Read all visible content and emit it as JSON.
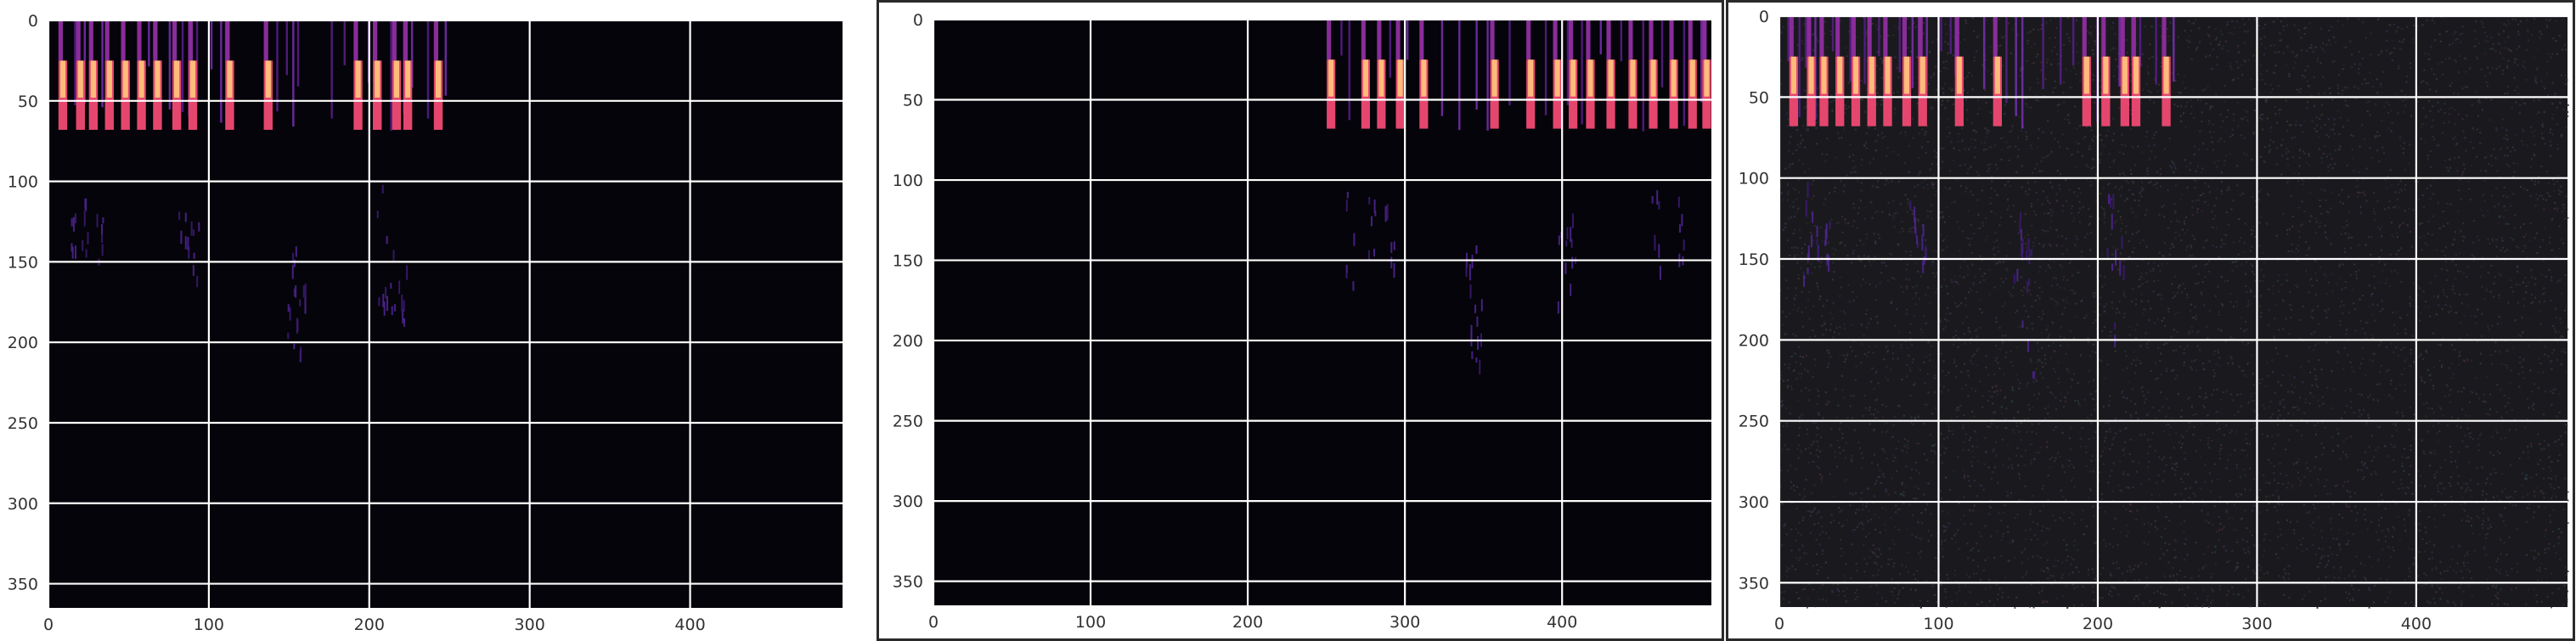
{
  "chart_data": [
    {
      "type": "heatmap",
      "title": "",
      "xlabel": "",
      "ylabel": "",
      "xlim": [
        0,
        495
      ],
      "ylim": [
        365,
        0
      ],
      "xticks": [
        0,
        100,
        200,
        300,
        400
      ],
      "yticks": [
        0,
        50,
        100,
        150,
        200,
        250,
        300,
        350
      ],
      "grid": true,
      "colormap": "magma",
      "background": "#05040a",
      "noise": false,
      "bright_columns": [
        9,
        20,
        28,
        38,
        48,
        58,
        68,
        80,
        90,
        113,
        137,
        193,
        205,
        217,
        224,
        243
      ],
      "faint_columns": [
        16,
        22,
        33,
        62,
        75,
        83,
        87,
        92,
        101,
        107,
        110,
        142,
        148,
        152,
        155,
        176,
        184,
        199,
        213,
        221,
        226,
        236,
        247
      ],
      "scatter_streaks": [
        [
          17,
          95,
          160
        ],
        [
          22,
          110,
          150
        ],
        [
          31,
          120,
          148
        ],
        [
          84,
          105,
          150
        ],
        [
          91,
          120,
          160
        ],
        [
          150,
          120,
          200
        ],
        [
          154,
          130,
          210
        ],
        [
          157,
          140,
          220
        ],
        [
          207,
          100,
          190
        ],
        [
          213,
          120,
          210
        ],
        [
          220,
          150,
          200
        ]
      ]
    },
    {
      "type": "heatmap",
      "title": "",
      "xlabel": "",
      "ylabel": "",
      "xlim": [
        0,
        495
      ],
      "ylim": [
        365,
        0
      ],
      "xticks": [
        0,
        100,
        200,
        300,
        400
      ],
      "yticks": [
        0,
        50,
        100,
        150,
        200,
        250,
        300,
        350
      ],
      "grid": true,
      "colormap": "magma",
      "background": "#05040a",
      "noise": false,
      "bright_columns": [
        253,
        275,
        285,
        297,
        312,
        357,
        380,
        397,
        407,
        418,
        431,
        445,
        458,
        471,
        483,
        492
      ],
      "faint_columns": [
        259,
        264,
        290,
        301,
        323,
        334,
        345,
        352,
        366,
        389,
        403,
        412,
        424,
        437,
        451,
        463,
        477,
        488
      ],
      "scatter_streaks": [
        [
          265,
          100,
          180
        ],
        [
          279,
          110,
          150
        ],
        [
          290,
          110,
          190
        ],
        [
          339,
          120,
          200
        ],
        [
          343,
          130,
          210
        ],
        [
          347,
          140,
          215
        ],
        [
          400,
          100,
          190
        ],
        [
          406,
          110,
          170
        ],
        [
          459,
          100,
          160
        ],
        [
          475,
          110,
          150
        ]
      ]
    },
    {
      "type": "heatmap",
      "title": "",
      "xlabel": "",
      "ylabel": "",
      "xlim": [
        0,
        495
      ],
      "ylim": [
        365,
        0
      ],
      "xticks": [
        0,
        100,
        200,
        300,
        400
      ],
      "yticks": [
        0,
        50,
        100,
        150,
        200,
        250,
        300,
        350
      ],
      "grid": true,
      "colormap": "magma",
      "background": "#1a1a1e",
      "noise": true,
      "bright_columns": [
        9,
        20,
        28,
        38,
        48,
        58,
        68,
        80,
        90,
        113,
        137,
        193,
        205,
        217,
        224,
        243
      ],
      "faint_columns": [
        5,
        12,
        16,
        22,
        33,
        44,
        53,
        62,
        75,
        83,
        87,
        92,
        101,
        107,
        110,
        128,
        142,
        148,
        152,
        165,
        176,
        184,
        199,
        213,
        221,
        226,
        236,
        247
      ],
      "scatter_streaks": [
        [
          17,
          95,
          160
        ],
        [
          22,
          110,
          150
        ],
        [
          31,
          120,
          148
        ],
        [
          84,
          105,
          150
        ],
        [
          91,
          120,
          160
        ],
        [
          150,
          120,
          200
        ],
        [
          154,
          130,
          210
        ],
        [
          157,
          140,
          220
        ],
        [
          207,
          100,
          190
        ],
        [
          213,
          120,
          210
        ]
      ]
    }
  ]
}
